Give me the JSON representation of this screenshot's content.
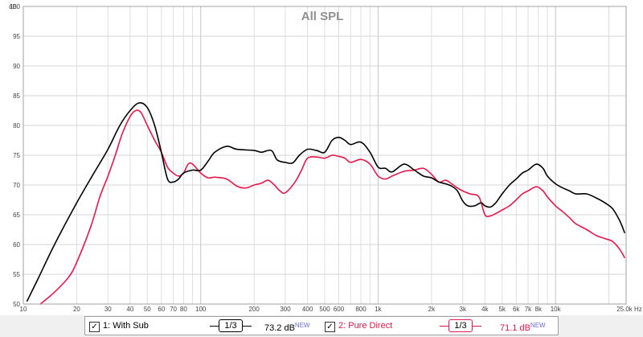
{
  "chart_data": {
    "type": "line",
    "title": "All SPL",
    "y_unit": "dB",
    "x_unit": "Hz",
    "x_scale": "log",
    "xlim": [
      10,
      25000
    ],
    "ylim": [
      50,
      100
    ],
    "grid": true,
    "y_ticks": [
      "50",
      "55",
      "60",
      "65",
      "70",
      "75",
      "80",
      "85",
      "90",
      "95",
      "100"
    ],
    "x_ticks": [
      {
        "v": 10,
        "label": "10"
      },
      {
        "v": 20,
        "label": "20"
      },
      {
        "v": 30,
        "label": "30"
      },
      {
        "v": 40,
        "label": "40"
      },
      {
        "v": 50,
        "label": "50"
      },
      {
        "v": 60,
        "label": "60"
      },
      {
        "v": 70,
        "label": "70"
      },
      {
        "v": 80,
        "label": "80"
      },
      {
        "v": 100,
        "label": "100"
      },
      {
        "v": 200,
        "label": "200"
      },
      {
        "v": 300,
        "label": "300"
      },
      {
        "v": 400,
        "label": "400"
      },
      {
        "v": 500,
        "label": "500"
      },
      {
        "v": 600,
        "label": "600"
      },
      {
        "v": 800,
        "label": "800"
      },
      {
        "v": 1000,
        "label": "1k"
      },
      {
        "v": 2000,
        "label": "2k"
      },
      {
        "v": 3000,
        "label": "3k"
      },
      {
        "v": 4000,
        "label": "4k"
      },
      {
        "v": 5000,
        "label": "5k"
      },
      {
        "v": 6000,
        "label": "6k"
      },
      {
        "v": 7000,
        "label": "7k"
      },
      {
        "v": 8000,
        "label": "8k"
      },
      {
        "v": 10000,
        "label": "10k"
      },
      {
        "v": 25000,
        "label": "25.0k Hz"
      }
    ],
    "series": [
      {
        "name": "1: With Sub",
        "color": "#000000",
        "points": [
          [
            10.5,
            50.5
          ],
          [
            12,
            54
          ],
          [
            15,
            60
          ],
          [
            20,
            67
          ],
          [
            25,
            72
          ],
          [
            30,
            76
          ],
          [
            35,
            80
          ],
          [
            40,
            82.5
          ],
          [
            45,
            83.8
          ],
          [
            50,
            83
          ],
          [
            55,
            80
          ],
          [
            60,
            75.5
          ],
          [
            65,
            71
          ],
          [
            70,
            70.5
          ],
          [
            75,
            71
          ],
          [
            80,
            72
          ],
          [
            90,
            72.5
          ],
          [
            100,
            72.5
          ],
          [
            110,
            74
          ],
          [
            120,
            75.5
          ],
          [
            140,
            76.5
          ],
          [
            160,
            76
          ],
          [
            200,
            75.8
          ],
          [
            220,
            75.5
          ],
          [
            250,
            75.8
          ],
          [
            270,
            74.2
          ],
          [
            300,
            73.8
          ],
          [
            330,
            73.7
          ],
          [
            360,
            75
          ],
          [
            400,
            76
          ],
          [
            450,
            75.8
          ],
          [
            500,
            75.5
          ],
          [
            550,
            77.5
          ],
          [
            600,
            78
          ],
          [
            650,
            77.5
          ],
          [
            700,
            76.8
          ],
          [
            800,
            77.2
          ],
          [
            900,
            75.5
          ],
          [
            1000,
            73
          ],
          [
            1100,
            72.8
          ],
          [
            1200,
            72.2
          ],
          [
            1400,
            73.5
          ],
          [
            1600,
            72.5
          ],
          [
            1800,
            71.5
          ],
          [
            2000,
            71.2
          ],
          [
            2200,
            70.5
          ],
          [
            2400,
            70.2
          ],
          [
            2600,
            69.8
          ],
          [
            2800,
            69
          ],
          [
            3000,
            67.3
          ],
          [
            3200,
            66.5
          ],
          [
            3500,
            66.5
          ],
          [
            3800,
            67
          ],
          [
            4000,
            66.5
          ],
          [
            4300,
            66.3
          ],
          [
            4600,
            67
          ],
          [
            5000,
            68.5
          ],
          [
            5500,
            70
          ],
          [
            6000,
            71
          ],
          [
            6500,
            72
          ],
          [
            7000,
            72.5
          ],
          [
            7800,
            73.5
          ],
          [
            8500,
            72.8
          ],
          [
            9000,
            71.5
          ],
          [
            10000,
            70.2
          ],
          [
            11000,
            69.5
          ],
          [
            12000,
            69
          ],
          [
            13000,
            68.5
          ],
          [
            15000,
            68.5
          ],
          [
            17000,
            67.8
          ],
          [
            19000,
            67
          ],
          [
            21000,
            66
          ],
          [
            23000,
            64
          ],
          [
            24500,
            62
          ]
        ]
      },
      {
        "name": "2: Pure Direct",
        "color": "#e8174a",
        "points": [
          [
            12.5,
            50
          ],
          [
            15,
            52
          ],
          [
            18,
            54.5
          ],
          [
            20,
            57
          ],
          [
            24,
            63
          ],
          [
            27,
            68
          ],
          [
            30,
            71.5
          ],
          [
            33,
            75
          ],
          [
            36,
            78.5
          ],
          [
            40,
            81.5
          ],
          [
            43,
            82.5
          ],
          [
            46,
            82.2
          ],
          [
            50,
            80
          ],
          [
            55,
            77.5
          ],
          [
            60,
            75.5
          ],
          [
            65,
            73
          ],
          [
            70,
            72
          ],
          [
            75,
            71.5
          ],
          [
            80,
            72
          ],
          [
            85,
            73.5
          ],
          [
            90,
            73.5
          ],
          [
            100,
            72
          ],
          [
            110,
            71.2
          ],
          [
            120,
            71.3
          ],
          [
            140,
            71
          ],
          [
            160,
            69.8
          ],
          [
            180,
            69.5
          ],
          [
            200,
            70
          ],
          [
            220,
            70.3
          ],
          [
            240,
            70.8
          ],
          [
            260,
            70
          ],
          [
            280,
            69
          ],
          [
            300,
            68.7
          ],
          [
            340,
            70.5
          ],
          [
            370,
            72.5
          ],
          [
            400,
            74.5
          ],
          [
            450,
            74.7
          ],
          [
            500,
            74.5
          ],
          [
            550,
            75
          ],
          [
            600,
            74.8
          ],
          [
            650,
            74.5
          ],
          [
            700,
            73.8
          ],
          [
            800,
            74.3
          ],
          [
            900,
            73.5
          ],
          [
            1000,
            71.5
          ],
          [
            1100,
            71
          ],
          [
            1200,
            71.5
          ],
          [
            1400,
            72.3
          ],
          [
            1600,
            72.5
          ],
          [
            1800,
            72.8
          ],
          [
            2000,
            71.8
          ],
          [
            2200,
            70.5
          ],
          [
            2400,
            70.8
          ],
          [
            2600,
            70.2
          ],
          [
            2800,
            69.5
          ],
          [
            3000,
            69
          ],
          [
            3300,
            68.5
          ],
          [
            3700,
            68
          ],
          [
            4000,
            65
          ],
          [
            4300,
            64.8
          ],
          [
            4600,
            65.2
          ],
          [
            5000,
            65.8
          ],
          [
            5500,
            66.5
          ],
          [
            6000,
            67.5
          ],
          [
            6500,
            68.5
          ],
          [
            7000,
            69
          ],
          [
            7800,
            69.7
          ],
          [
            8500,
            69
          ],
          [
            9000,
            68
          ],
          [
            10000,
            66.5
          ],
          [
            11000,
            65.5
          ],
          [
            12000,
            64.5
          ],
          [
            13000,
            63.5
          ],
          [
            15000,
            62.5
          ],
          [
            17000,
            61.5
          ],
          [
            19000,
            61
          ],
          [
            21000,
            60.5
          ],
          [
            23000,
            59.2
          ],
          [
            24500,
            57.8
          ]
        ]
      }
    ]
  },
  "legend": {
    "items": [
      {
        "checked": "✓",
        "name": "1: With Sub",
        "smoothing": "1/3",
        "spl": "73.2 dB",
        "badge": "NEW",
        "color": "#000000"
      },
      {
        "checked": "✓",
        "name": "2: Pure Direct",
        "smoothing": "1/3",
        "spl": "71.1 dB",
        "badge": "NEW",
        "color": "#e8174a"
      }
    ]
  }
}
